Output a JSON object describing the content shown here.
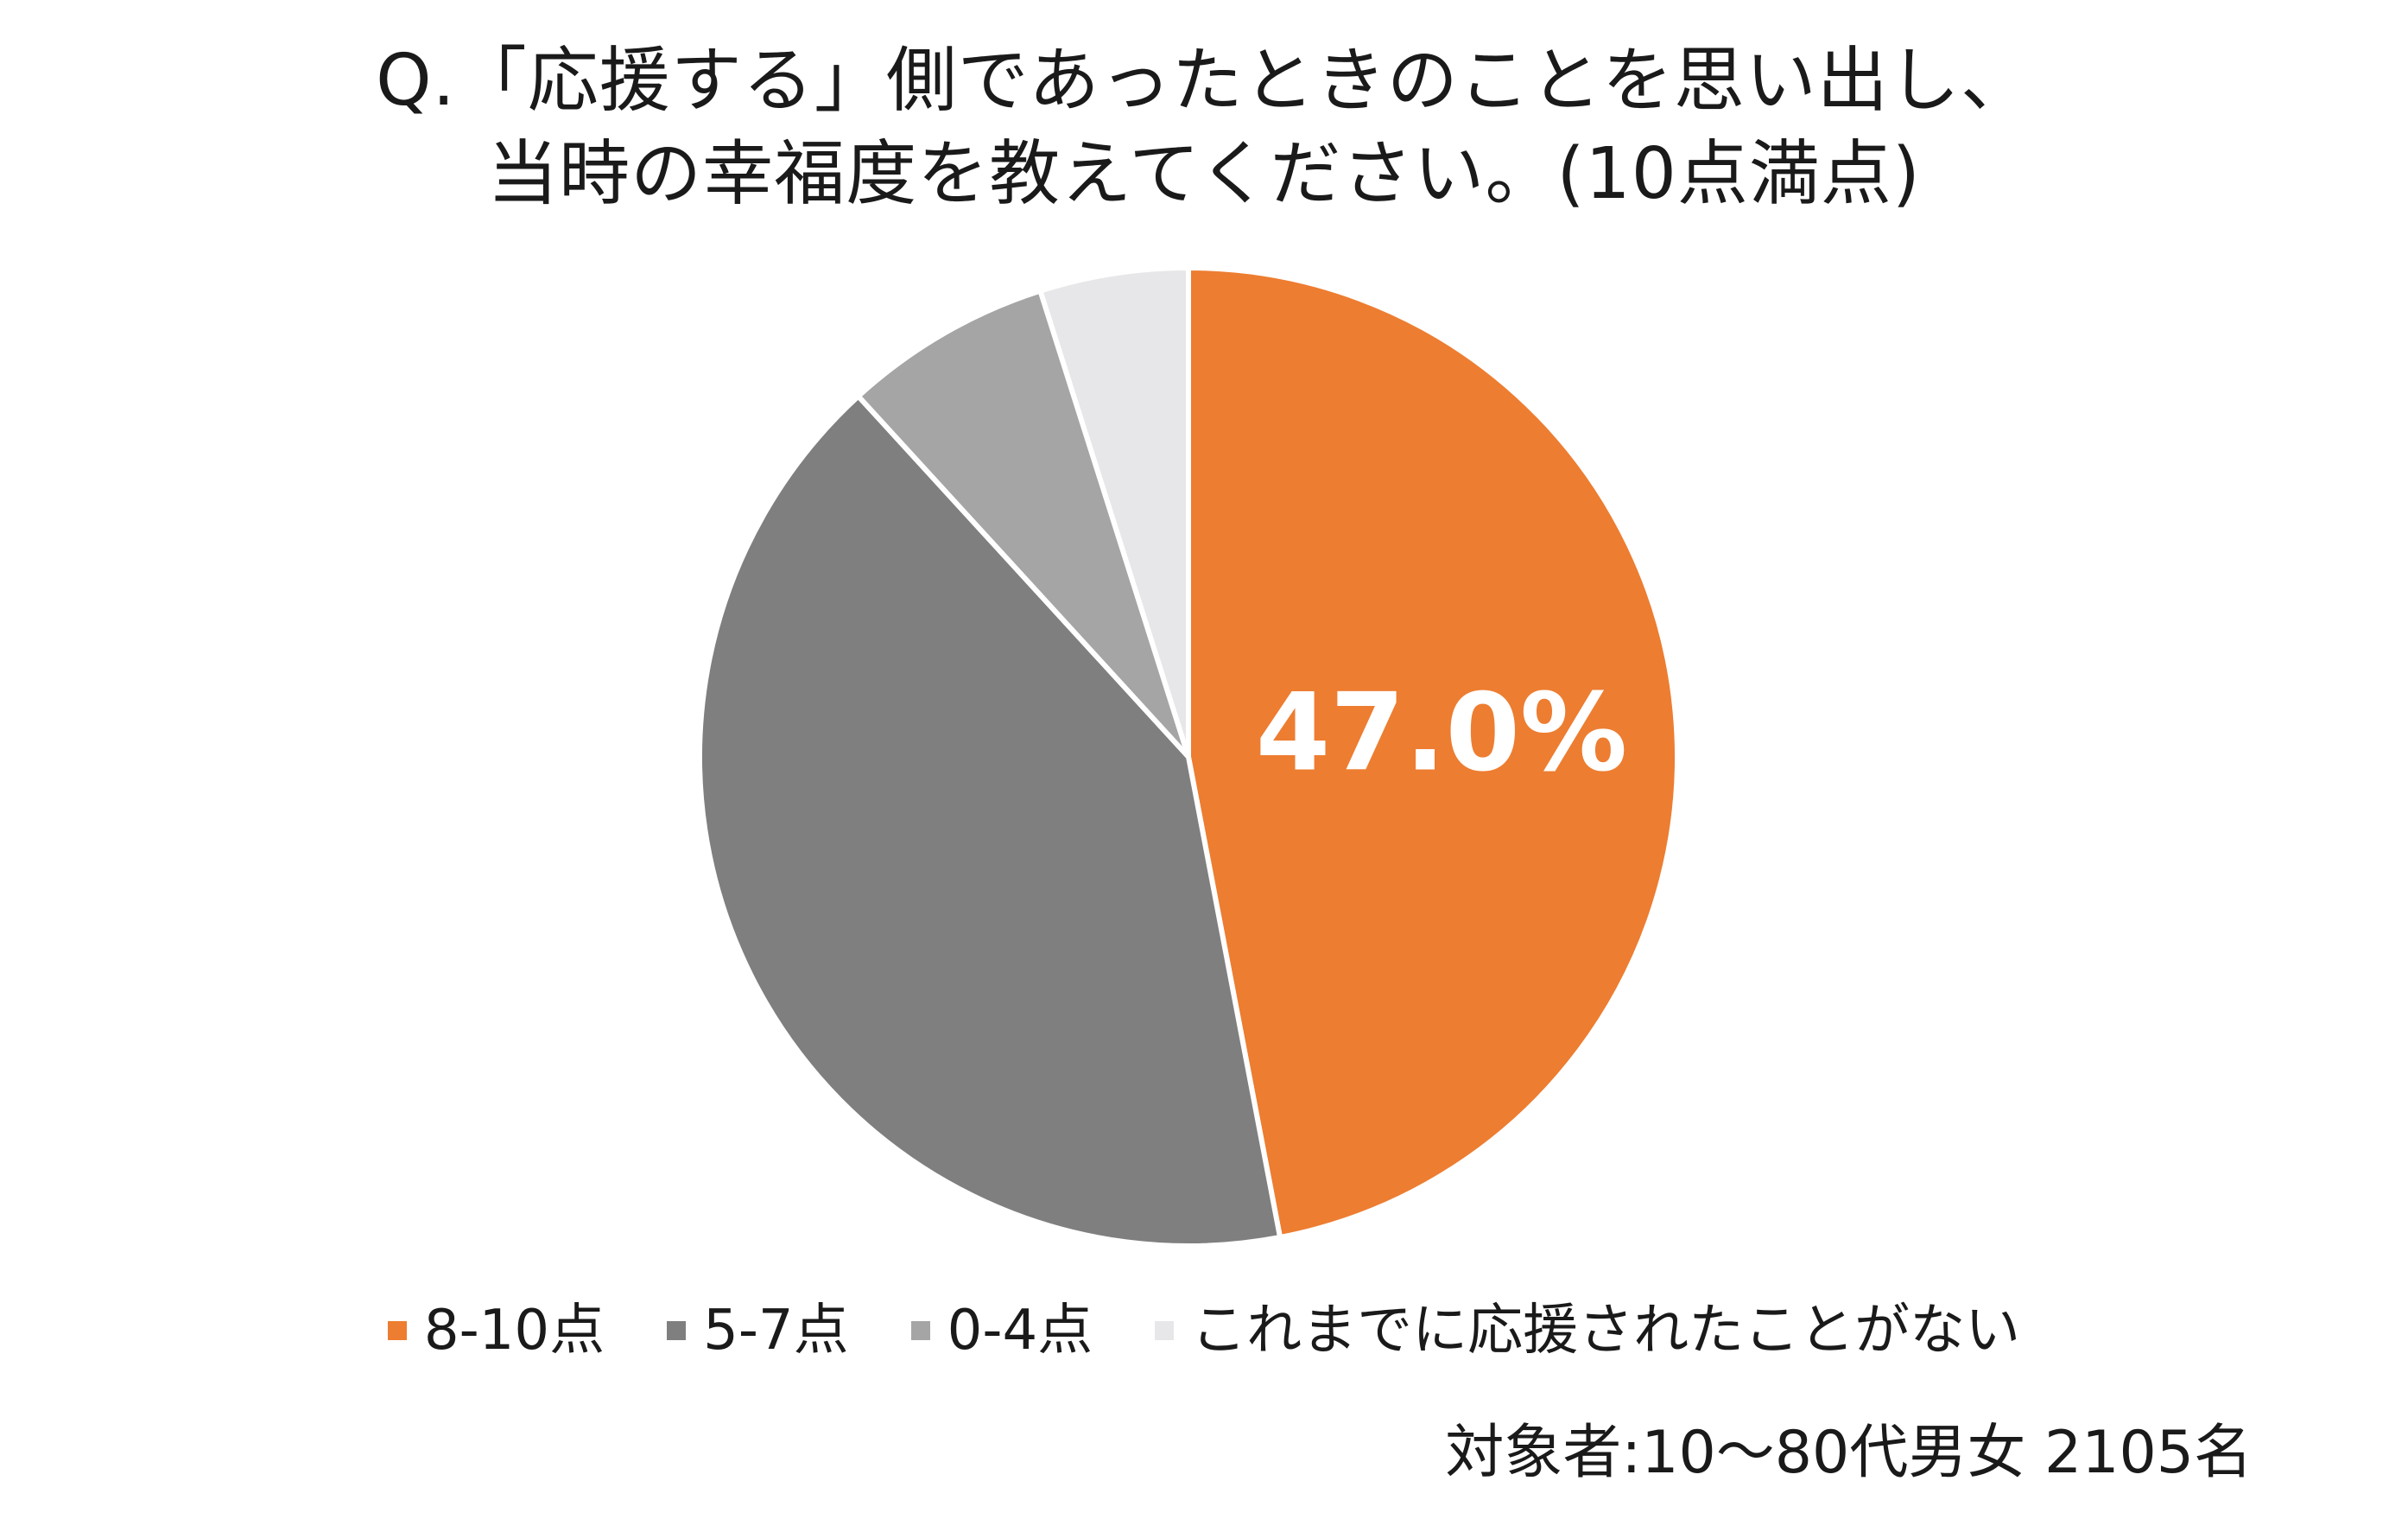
{
  "title": {
    "line1": "Q.「応援する」側であったときのことを思い出し、",
    "line2": "当時の幸福度を教えてください。(10点満点)"
  },
  "chart_data": {
    "type": "pie",
    "title": "Q.「応援する」側であったときのことを思い出し、当時の幸福度を教えてください。(10点満点)",
    "categories": [
      "8-10点",
      "5-7点",
      "0-4点",
      "これまでに応援されたことがない"
    ],
    "values": [
      47.0,
      41.2,
      6.9,
      4.9
    ],
    "colors": [
      "#ED7D31",
      "#7F7F7F",
      "#A5A5A5",
      "#E7E6E8"
    ],
    "data_labels": [
      "47.0%",
      "",
      "",
      ""
    ],
    "start_angle_deg": 0,
    "direction": "clockwise",
    "legend_position": "bottom"
  },
  "legend": {
    "items": [
      {
        "label": "8-10点",
        "color": "#ED7D31"
      },
      {
        "label": "5-7点",
        "color": "#7F7F7F"
      },
      {
        "label": "0-4点",
        "color": "#A5A5A5"
      },
      {
        "label": "これまでに応援されたことがない",
        "color": "#E7E6E8"
      }
    ]
  },
  "footnote": "対象者:10〜80代男女 2105名"
}
